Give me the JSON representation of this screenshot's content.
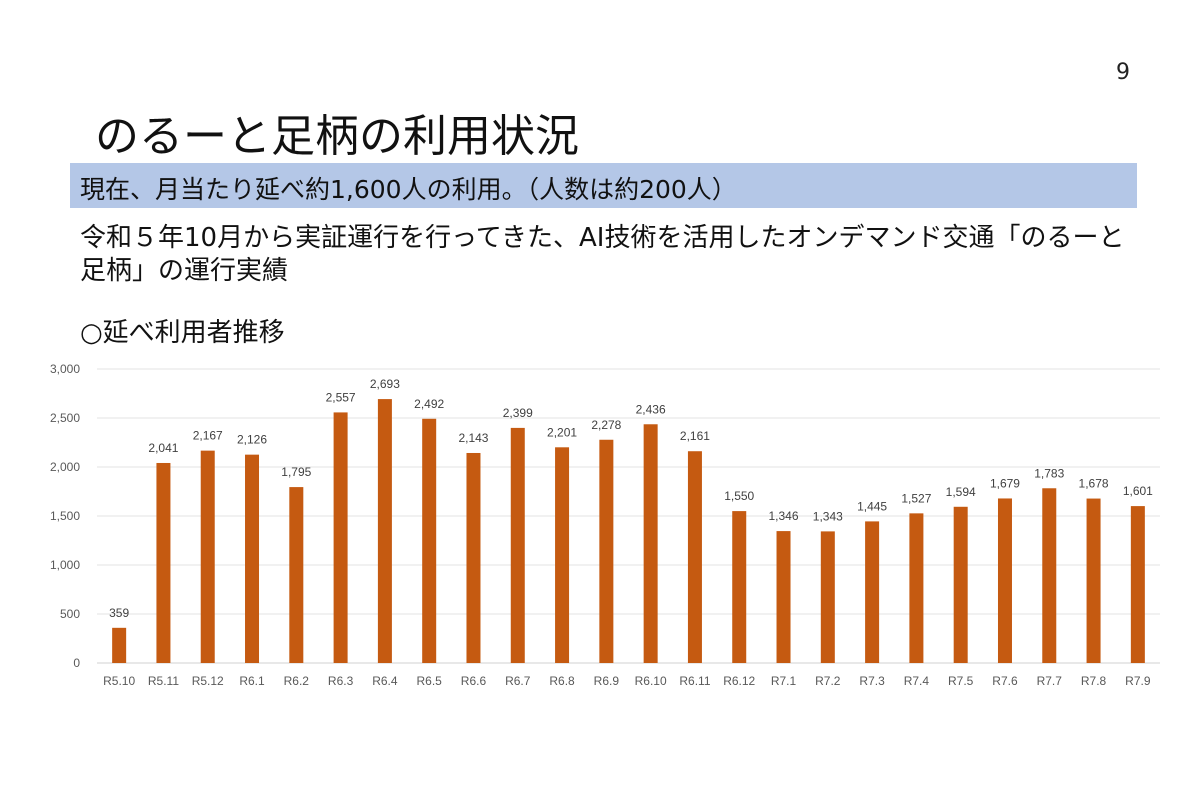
{
  "slide": {
    "page_number": "9",
    "title": "のるーと足柄の利用状況",
    "highlight": "現在、月当たり延べ約1,600人の利用。（人数は約200人）",
    "description": "令和５年10月から実証運行を行ってきた、AI技術を活用したオンデマンド交通「のるーと足柄」の運行実績",
    "section_heading": "○延べ利用者推移",
    "band_color": "#b4c7e7"
  },
  "chart_data": {
    "type": "bar",
    "categories": [
      "R5.10",
      "R5.11",
      "R5.12",
      "R6.1",
      "R6.2",
      "R6.3",
      "R6.4",
      "R6.5",
      "R6.6",
      "R6.7",
      "R6.8",
      "R6.9",
      "R6.10",
      "R6.11",
      "R6.12",
      "R7.1",
      "R7.2",
      "R7.3",
      "R7.4",
      "R7.5",
      "R7.6",
      "R7.7",
      "R7.8",
      "R7.9"
    ],
    "values": [
      359,
      2041,
      2167,
      2126,
      1795,
      2557,
      2693,
      2492,
      2143,
      2399,
      2201,
      2278,
      2436,
      2161,
      1550,
      1346,
      1343,
      1445,
      1527,
      1594,
      1679,
      1783,
      1678,
      1601
    ],
    "data_labels": [
      "359",
      "2,041",
      "2,167",
      "2,126",
      "1,795",
      "2,557",
      "2,693",
      "2,492",
      "2,143",
      "2,399",
      "2,201",
      "2,278",
      "2,436",
      "2,161",
      "1,550",
      "1,346",
      "1,343",
      "1,445",
      "1,527",
      "1,594",
      "1,679",
      "1,783",
      "1,678",
      "1,601"
    ],
    "y_ticks": [
      "0",
      "500",
      "1,000",
      "1,500",
      "2,000",
      "2,500",
      "3,000"
    ],
    "ylim": [
      0,
      3000
    ],
    "grid": true,
    "bar_color": "#c55a11"
  }
}
